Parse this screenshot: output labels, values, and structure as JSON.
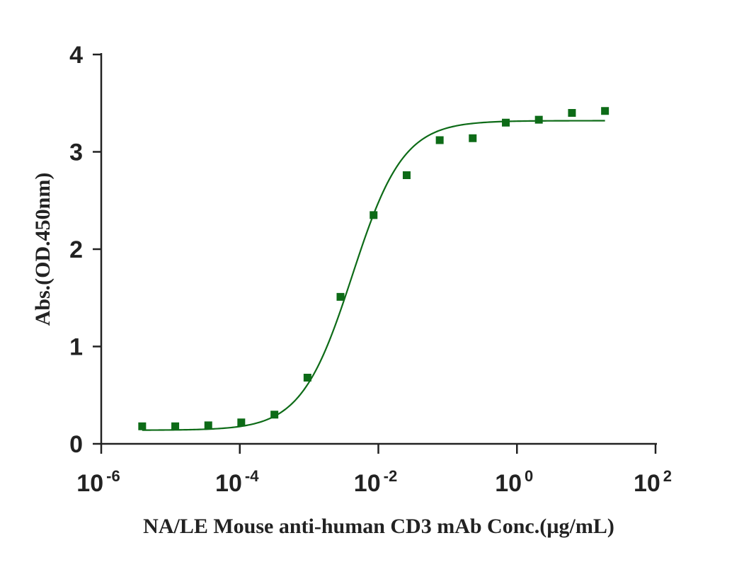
{
  "chart_data": {
    "type": "scatter",
    "title": "",
    "xlabel": "NA/LE Mouse anti-human CD3 mAb Conc.(µg/mL)",
    "ylabel": "Abs.(OD.450nm)",
    "x_scale": "log10",
    "xlim": [
      1e-06,
      100
    ],
    "ylim": [
      0,
      4
    ],
    "x_ticks": [
      {
        "base": "10",
        "exp": "-6",
        "value": 1e-06
      },
      {
        "base": "10",
        "exp": "-4",
        "value": 0.0001
      },
      {
        "base": "10",
        "exp": "-2",
        "value": 0.01
      },
      {
        "base": "10",
        "exp": "0",
        "value": 1
      },
      {
        "base": "10",
        "exp": "2",
        "value": 100
      }
    ],
    "y_ticks": [
      "0",
      "1",
      "2",
      "3",
      "4"
    ],
    "grid": false,
    "legend": "none",
    "color": "#0d6b17",
    "series": [
      {
        "x": [
          3.9e-06,
          1.17e-05,
          3.51e-05,
          0.000105,
          0.000316,
          0.000948,
          0.00284,
          0.00853,
          0.0256,
          0.0768,
          0.23,
          0.691,
          2.07,
          6.22,
          18.66
        ],
        "y": [
          0.18,
          0.18,
          0.19,
          0.22,
          0.3,
          0.68,
          1.51,
          2.35,
          2.76,
          3.12,
          3.14,
          3.3,
          3.33,
          3.4,
          3.42
        ]
      }
    ],
    "fit": {
      "model": "4PL",
      "bottom": 0.14,
      "top": 3.32,
      "ec50": 0.0042,
      "hill": 1.18,
      "x_range": [
        3.9e-06,
        18.66
      ]
    }
  }
}
